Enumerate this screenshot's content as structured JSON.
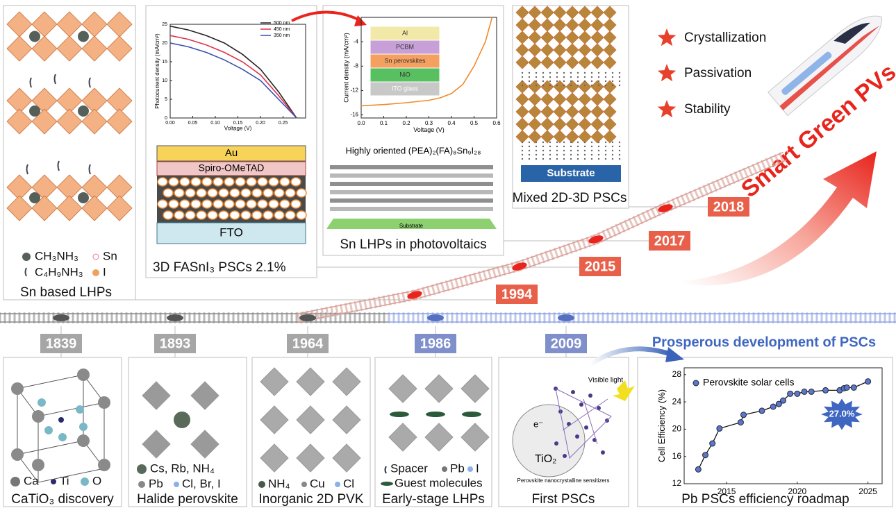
{
  "headline": "Smart Green PVs",
  "highlights": [
    "Crystallization",
    "Passivation",
    "Stability"
  ],
  "prosperous": "Prosperous development of PSCs",
  "timeline": {
    "upper_years": [
      "1994",
      "2015",
      "2017",
      "2018"
    ],
    "lower_years": [
      "1839",
      "1893",
      "1964",
      "1986",
      "2009"
    ]
  },
  "top_panels": [
    {
      "caption": "Sn based LHPs",
      "legend": [
        "CH₃NH₃",
        "Sn",
        "C₄H₉NH₃",
        "I"
      ]
    },
    {
      "caption": "3D FASnI₃ PSCs 2.1%",
      "layers": [
        "Au",
        "Spiro-OMeTAD",
        "FTO"
      ],
      "chart": {
        "type": "line",
        "xlabel": "Voltage (V)",
        "ylabel": "Photocurrent density (mA/cm²)",
        "x": [
          0,
          0.04,
          0.08,
          0.12,
          0.16,
          0.2,
          0.24,
          0.28
        ],
        "xlim": [
          0,
          0.3
        ],
        "xticks": [
          {
            "value": 0,
            "label": "0.00"
          },
          {
            "value": 0.05,
            "label": "0.05"
          },
          {
            "value": 0.1,
            "label": "0.10"
          },
          {
            "value": 0.15,
            "label": "0.15"
          },
          {
            "value": 0.2,
            "label": "0.20"
          },
          {
            "value": 0.25,
            "label": "0.25"
          }
        ],
        "ylim": [
          0,
          25
        ],
        "yticks": [
          0,
          5,
          10,
          15,
          20,
          25
        ],
        "series": [
          {
            "name": "500 nm",
            "color": "#222222",
            "values": [
              24.5,
              23.5,
              22,
              20,
              17,
              13,
              7,
              0
            ]
          },
          {
            "name": "450 nm",
            "color": "#e0304a",
            "values": [
              22,
              21,
              19.5,
              17.5,
              15,
              11.5,
              6,
              0
            ]
          },
          {
            "name": "350 nm",
            "color": "#3550b0",
            "values": [
              20,
              19,
              17.5,
              15.5,
              13,
              10,
              5,
              0
            ]
          }
        ]
      }
    },
    {
      "caption": "Sn LHPs in photovoltaics",
      "subtitle": "Highly oriented (PEA)₂(FA)₈Sn₉I₂₈",
      "substrate": "Substrate",
      "layers": [
        "Al",
        "PCBM",
        "Sn perovskites",
        "NiO",
        "ITO glass"
      ],
      "chart": {
        "type": "line",
        "xlabel": "Voltage (V)",
        "ylabel": "Current density (mA/cm²)",
        "x": [
          0,
          0.1,
          0.2,
          0.3,
          0.35,
          0.4,
          0.45,
          0.5,
          0.55,
          0.58
        ],
        "xlim": [
          0,
          0.6
        ],
        "xticks": [
          {
            "value": 0,
            "label": "0.0"
          },
          {
            "value": 0.1,
            "label": "0.1"
          },
          {
            "value": 0.2,
            "label": "0.2"
          },
          {
            "value": 0.3,
            "label": "0.3"
          },
          {
            "value": 0.4,
            "label": "0.4"
          },
          {
            "value": 0.5,
            "label": "0.5"
          },
          {
            "value": 0.6,
            "label": "0.6"
          }
        ],
        "ylim": [
          -16.5,
          0
        ],
        "yticks": [
          -16,
          -12,
          -8,
          -4
        ],
        "series": [
          {
            "name": null,
            "color": "#f08a2a",
            "values": [
              -14.5,
              -14.3,
              -14,
              -13.6,
              -13.2,
              -12.5,
              -11,
              -8,
              -4,
              0
            ]
          }
        ]
      }
    },
    {
      "caption": "Mixed 2D-3D PSCs",
      "substrate": "Substrate"
    }
  ],
  "bottom_panels": [
    {
      "caption": "CaTiO₃ discovery",
      "legend": [
        "Ca",
        "Ti",
        "O"
      ]
    },
    {
      "caption": "Halide perovskite",
      "legend": [
        "Cs, Rb, NH₄",
        "Pb",
        "Cl, Br, I"
      ]
    },
    {
      "caption": "Inorganic 2D PVK",
      "legend": [
        "NH₄",
        "Cu",
        "Cl"
      ]
    },
    {
      "caption": "Early-stage LHPs",
      "legend": [
        "Spacer",
        "Pb",
        "I",
        "Guest molecules"
      ]
    },
    {
      "caption": "First PSCs",
      "labels": [
        "Visible light",
        "e⁻",
        "TiO₂",
        "Perovskite nanocrystalline sensitizers"
      ]
    }
  ],
  "efficiency_chart": {
    "type": "scatter",
    "caption": "Pb PSCs efficiency roadmap",
    "ylabel": "Cell Efficiency (%)",
    "legend": "Perovskite solar cells",
    "annotation": "27.0%",
    "color": "#5b78c8",
    "x": [
      2013,
      2013.5,
      2014,
      2014.5,
      2016,
      2016.2,
      2017.5,
      2018.3,
      2018.7,
      2019,
      2019.5,
      2020,
      2020.5,
      2021,
      2022,
      2023,
      2023.3,
      2023.5,
      2024,
      2025
    ],
    "values": [
      14.1,
      16.2,
      17.9,
      20.1,
      21.0,
      22.1,
      22.7,
      23.3,
      23.7,
      24.2,
      25.2,
      25.2,
      25.5,
      25.5,
      25.7,
      25.7,
      26.0,
      26.1,
      26.1,
      27.0
    ],
    "xlim": [
      2012,
      2026
    ],
    "xticks": [
      2015,
      2020,
      2025
    ],
    "ylim": [
      12,
      29
    ],
    "yticks": [
      12,
      16,
      20,
      24,
      28
    ]
  }
}
